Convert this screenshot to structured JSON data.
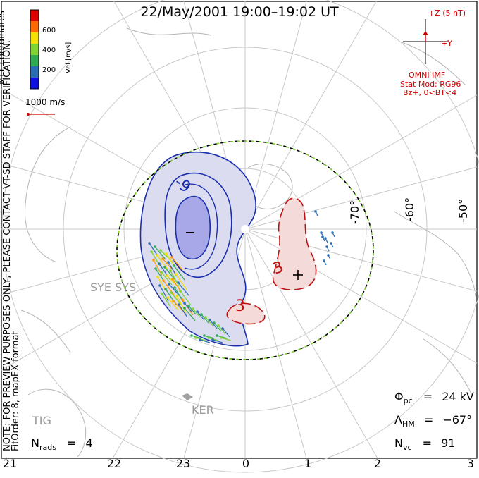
{
  "title": "22/May/2001 19:00–19:02 UT",
  "side_note": {
    "line1": "MLT coordinates",
    "line2": "NOTE: FOR PREVIEW PURPOSES ONLY, PLEASE CONTACT VT-SD STAFF FOR VERIFICATION.",
    "line3": "FitOrder: 8,  mapEX format"
  },
  "colorbar": {
    "title": "Vel [m/s]",
    "ticks": [
      "600",
      "400",
      "200"
    ],
    "colors": [
      "#e00000",
      "#ff6a00",
      "#f3e000",
      "#7fd431",
      "#2faa55",
      "#2a6fb5",
      "#1010e0"
    ]
  },
  "velocity_scale": {
    "label": "1000 m/s",
    "color": "#cc0000"
  },
  "imf": {
    "plus_z": "+Z (5 nT)",
    "plus_y": "+Y",
    "omni": "OMNI IMF",
    "stat_mod": "Stat Mod: RG96",
    "condition": "Bz+, 0<BT<4",
    "color": "#cc0000"
  },
  "latitude_labels": [
    "-70°",
    "-60°",
    "-50°"
  ],
  "mlt_ticks": [
    "21",
    "22",
    "23",
    "0",
    "1",
    "2",
    "3"
  ],
  "stations": [
    "SYE SYS",
    "KER",
    "TIG"
  ],
  "contour_labels": {
    "negative": "-9",
    "positive": "3",
    "positive2": "3"
  },
  "extrema": {
    "min_symbol": "−",
    "max_symbol": "+"
  },
  "stats": {
    "phi_pc": "24 kV",
    "lambda_hm": "−67°",
    "n_vc": "91",
    "n_rads": "4"
  },
  "stats_labels": {
    "phi": "Φ",
    "phi_sub": "pc",
    "lambda": "Λ",
    "lambda_sub": "HM",
    "nvc": "N",
    "nvc_sub": "vc",
    "nrads": "N",
    "nrads_sub": "rads"
  },
  "colors": {
    "negative_cell_fill": "#dcdcf0",
    "negative_core_fill": "#a8a8e8",
    "negative_line": "#1a2fb0",
    "positive_cell_fill": "#f5dada",
    "positive_line": "#c01010",
    "hm_boundary_green": "#7fd431"
  }
}
